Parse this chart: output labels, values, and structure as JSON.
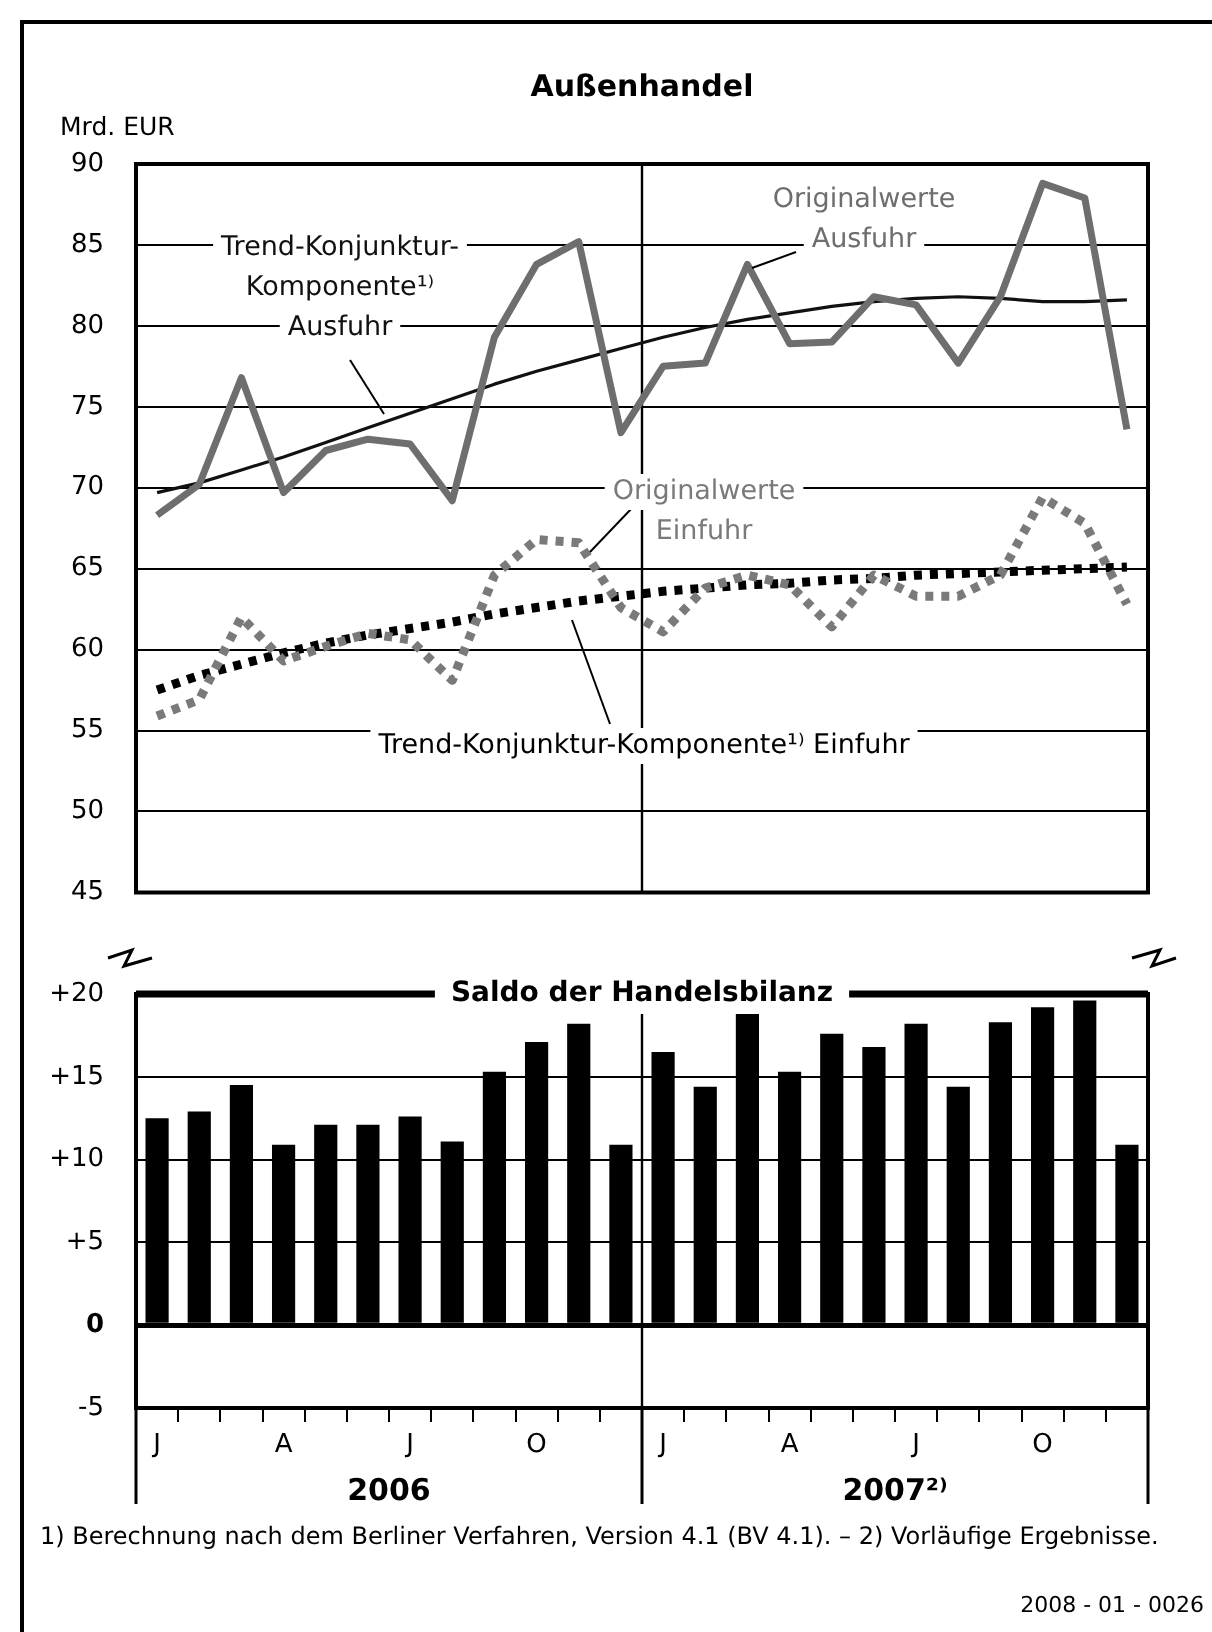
{
  "chart_data": [
    {
      "type": "line",
      "title": "Außenhandel",
      "ylabel": "Mrd. EUR",
      "categories": [
        null,
        null,
        null,
        null,
        null,
        null,
        null,
        null,
        null,
        null,
        null,
        null,
        null,
        null,
        null,
        null,
        null,
        null,
        null,
        null,
        null,
        null,
        null,
        null
      ],
      "ylim": [
        45,
        90
      ],
      "yticks": [
        45,
        50,
        55,
        60,
        65,
        70,
        75,
        80,
        85,
        90
      ],
      "grid": "y",
      "tick_labels": "y",
      "series": [
        {
          "name": "Originalwerte Ausfuhr",
          "color": "#6e6e6e",
          "line_style": "solid",
          "values": [
            68.3,
            70.2,
            76.8,
            69.7,
            72.3,
            73.0,
            72.7,
            69.2,
            79.3,
            83.8,
            85.2,
            73.4,
            77.5,
            77.7,
            83.8,
            78.9,
            79.0,
            81.8,
            81.3,
            77.7,
            81.8,
            88.8,
            87.9,
            73.6
          ]
        },
        {
          "name": "Trend-Konjunktur-Komponente¹⁾ Ausfuhr",
          "color": "#111111",
          "line_style": "solid",
          "values": [
            69.7,
            70.3,
            71.1,
            71.9,
            72.8,
            73.7,
            74.6,
            75.5,
            76.4,
            77.2,
            77.9,
            78.6,
            79.3,
            79.9,
            80.4,
            80.8,
            81.2,
            81.5,
            81.7,
            81.8,
            81.7,
            81.5,
            81.5,
            81.6
          ]
        },
        {
          "name": "Originalwerte Einfuhr",
          "color": "#7a7a7a",
          "line_style": "dotted",
          "values": [
            55.9,
            56.9,
            62.0,
            59.3,
            60.2,
            61.0,
            60.6,
            58.1,
            64.6,
            66.8,
            66.6,
            62.6,
            61.1,
            63.8,
            64.6,
            64.0,
            61.4,
            64.6,
            63.3,
            63.3,
            64.6,
            69.4,
            67.8,
            62.8
          ]
        },
        {
          "name": "Trend-Konjunktur-Komponente¹⁾ Einfuhr",
          "color": "#000000",
          "line_style": "dotted",
          "values": [
            57.5,
            58.4,
            59.1,
            59.8,
            60.4,
            60.9,
            61.3,
            61.7,
            62.2,
            62.6,
            63.0,
            63.3,
            63.6,
            63.8,
            64.0,
            64.1,
            64.3,
            64.4,
            64.6,
            64.7,
            64.8,
            64.9,
            65.0,
            65.1
          ]
        }
      ]
    },
    {
      "type": "bar",
      "title": "Saldo der Handelsbilanz",
      "categories": [
        "J",
        null,
        null,
        "A",
        null,
        null,
        "J",
        null,
        null,
        "O",
        null,
        null,
        "J",
        null,
        null,
        "A",
        null,
        null,
        "J",
        null,
        null,
        "O",
        null,
        null
      ],
      "values": [
        12.5,
        12.9,
        14.5,
        10.9,
        12.1,
        12.1,
        12.6,
        11.1,
        15.3,
        17.1,
        18.2,
        10.9,
        16.5,
        14.4,
        18.8,
        15.3,
        17.6,
        16.8,
        18.2,
        14.4,
        18.3,
        19.2,
        19.6,
        10.9
      ],
      "color": "#000000",
      "ylim": [
        -5,
        20
      ],
      "yticks": [
        {
          "value": -5,
          "label": "-5"
        },
        0,
        {
          "value": 5,
          "label": "+5"
        },
        {
          "value": 10,
          "label": "+10"
        },
        {
          "value": 15,
          "label": "+15"
        },
        {
          "value": 20,
          "label": "+20"
        }
      ],
      "grid": "y",
      "annotations": [
        "2006",
        "2007²⁾",
        "1) Berechnung nach dem Berliner Verfahren, Version 4.1 (BV 4.1). – 2) Vorläufige Ergebnisse.",
        "2008 - 01 - 0026"
      ]
    }
  ]
}
